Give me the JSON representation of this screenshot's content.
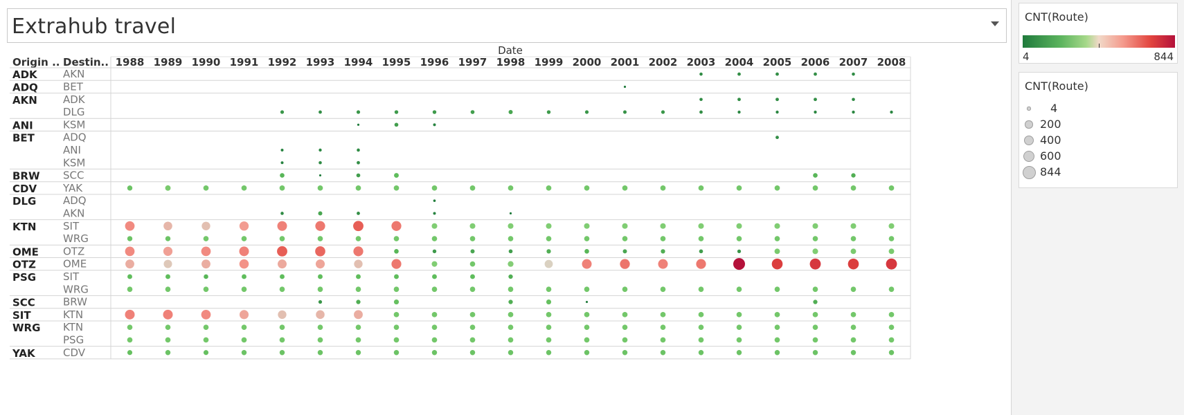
{
  "title": "Extrahub travel",
  "header": {
    "col_origin": "Origin ..",
    "col_dest": "Destin..",
    "date_label": "Date"
  },
  "years": [
    "1988",
    "1989",
    "1990",
    "1991",
    "1992",
    "1993",
    "1994",
    "1995",
    "1996",
    "1997",
    "1998",
    "1999",
    "2000",
    "2001",
    "2002",
    "2003",
    "2004",
    "2005",
    "2006",
    "2007",
    "2008"
  ],
  "colors": {
    "min": "#1f7a3c",
    "mid_green": "#7fcd72",
    "mid": "#d9d2c2",
    "mid_red": "#f4978c",
    "max": "#b4113a",
    "grid": "#d4d4d4"
  },
  "color_legend": {
    "title": "CNT(Route)",
    "min": "4",
    "max": "844"
  },
  "size_legend": {
    "title": "CNT(Route)",
    "items": [
      {
        "label": "4",
        "value": 4
      },
      {
        "label": "200",
        "value": 200
      },
      {
        "label": "400",
        "value": 400
      },
      {
        "label": "600",
        "value": 600
      },
      {
        "label": "844",
        "value": 844
      }
    ]
  },
  "chart_data": {
    "type": "scatter",
    "title": "Extrahub travel",
    "xlabel": "Date",
    "measure": "CNT(Route)",
    "value_range": [
      4,
      844
    ],
    "columns": [
      "1988",
      "1989",
      "1990",
      "1991",
      "1992",
      "1993",
      "1994",
      "1995",
      "1996",
      "1997",
      "1998",
      "1999",
      "2000",
      "2001",
      "2002",
      "2003",
      "2004",
      "2005",
      "2006",
      "2007",
      "2008"
    ],
    "rows": [
      {
        "origin": "ADK",
        "dest": "AKN",
        "values": [
          null,
          null,
          null,
          null,
          null,
          null,
          null,
          null,
          null,
          null,
          null,
          null,
          null,
          null,
          null,
          25,
          30,
          30,
          30,
          25,
          null
        ]
      },
      {
        "origin": "ADQ",
        "dest": "BET",
        "values": [
          null,
          null,
          null,
          null,
          null,
          null,
          null,
          null,
          null,
          null,
          null,
          null,
          null,
          5,
          null,
          null,
          null,
          null,
          null,
          null,
          null
        ]
      },
      {
        "origin": "AKN",
        "dest": "ADK",
        "values": [
          null,
          null,
          null,
          null,
          null,
          null,
          null,
          null,
          null,
          null,
          null,
          null,
          null,
          null,
          null,
          25,
          30,
          30,
          30,
          25,
          null
        ]
      },
      {
        "origin": "",
        "dest": "DLG",
        "values": [
          null,
          null,
          null,
          null,
          40,
          30,
          40,
          45,
          45,
          50,
          60,
          45,
          40,
          35,
          40,
          30,
          20,
          20,
          20,
          20,
          20
        ]
      },
      {
        "origin": "ANI",
        "dest": "KSM",
        "values": [
          null,
          null,
          null,
          null,
          null,
          null,
          5,
          50,
          15,
          null,
          null,
          null,
          null,
          null,
          null,
          null,
          null,
          null,
          null,
          null,
          null
        ]
      },
      {
        "origin": "BET",
        "dest": "ADQ",
        "values": [
          null,
          null,
          null,
          null,
          null,
          null,
          null,
          null,
          null,
          null,
          null,
          null,
          null,
          null,
          null,
          null,
          null,
          30,
          null,
          null,
          null
        ]
      },
      {
        "origin": "",
        "dest": "ANI",
        "values": [
          null,
          null,
          null,
          null,
          15,
          20,
          25,
          null,
          null,
          null,
          null,
          null,
          null,
          null,
          null,
          null,
          null,
          null,
          null,
          null,
          null
        ]
      },
      {
        "origin": "",
        "dest": "KSM",
        "values": [
          null,
          null,
          null,
          null,
          15,
          25,
          30,
          null,
          null,
          null,
          null,
          null,
          null,
          null,
          null,
          null,
          null,
          null,
          null,
          null,
          null
        ]
      },
      {
        "origin": "BRW",
        "dest": "SCC",
        "values": [
          null,
          null,
          null,
          null,
          80,
          5,
          50,
          90,
          null,
          null,
          null,
          null,
          null,
          null,
          null,
          null,
          null,
          null,
          80,
          70,
          null
        ]
      },
      {
        "origin": "CDV",
        "dest": "YAK",
        "values": [
          110,
          130,
          120,
          120,
          120,
          120,
          120,
          120,
          120,
          120,
          120,
          120,
          120,
          120,
          120,
          120,
          120,
          120,
          120,
          120,
          120
        ]
      },
      {
        "origin": "DLG",
        "dest": "ADQ",
        "values": [
          null,
          null,
          null,
          null,
          null,
          null,
          null,
          null,
          10,
          null,
          null,
          null,
          null,
          null,
          null,
          null,
          null,
          null,
          null,
          null,
          null
        ]
      },
      {
        "origin": "",
        "dest": "AKN",
        "values": [
          null,
          null,
          null,
          null,
          25,
          60,
          30,
          null,
          15,
          null,
          5,
          null,
          null,
          null,
          null,
          null,
          null,
          null,
          null,
          null,
          null
        ]
      },
      {
        "origin": "KTN",
        "dest": "SIT",
        "values": [
          520,
          420,
          400,
          480,
          540,
          560,
          620,
          560,
          140,
          140,
          140,
          140,
          140,
          140,
          140,
          140,
          140,
          140,
          140,
          140,
          140
        ]
      },
      {
        "origin": "",
        "dest": "WRG",
        "values": [
          110,
          110,
          120,
          120,
          120,
          120,
          120,
          120,
          120,
          120,
          120,
          120,
          120,
          120,
          120,
          120,
          120,
          120,
          120,
          120,
          120
        ]
      },
      {
        "origin": "OME",
        "dest": "OTZ",
        "values": [
          520,
          470,
          520,
          540,
          620,
          600,
          560,
          80,
          45,
          60,
          50,
          70,
          80,
          60,
          70,
          50,
          40,
          130,
          140,
          130,
          130
        ]
      },
      {
        "origin": "OTZ",
        "dest": "OME",
        "values": [
          440,
          380,
          440,
          500,
          450,
          460,
          400,
          560,
          140,
          120,
          150,
          360,
          540,
          570,
          540,
          560,
          844,
          700,
          720,
          700,
          720
        ]
      },
      {
        "origin": "PSG",
        "dest": "SIT",
        "values": [
          90,
          90,
          80,
          90,
          90,
          90,
          90,
          90,
          90,
          90,
          70,
          null,
          null,
          null,
          null,
          null,
          null,
          null,
          null,
          null,
          null
        ]
      },
      {
        "origin": "",
        "dest": "WRG",
        "values": [
          120,
          120,
          120,
          120,
          120,
          120,
          120,
          120,
          120,
          120,
          120,
          120,
          120,
          120,
          120,
          120,
          120,
          120,
          120,
          120,
          120
        ]
      },
      {
        "origin": "SCC",
        "dest": "BRW",
        "values": [
          null,
          null,
          null,
          null,
          null,
          40,
          70,
          100,
          null,
          null,
          70,
          100,
          5,
          null,
          null,
          null,
          null,
          null,
          70,
          null,
          null
        ]
      },
      {
        "origin": "SIT",
        "dest": "KTN",
        "values": [
          540,
          540,
          520,
          460,
          400,
          420,
          440,
          120,
          120,
          120,
          120,
          120,
          120,
          120,
          120,
          120,
          120,
          120,
          120,
          120,
          120
        ]
      },
      {
        "origin": "WRG",
        "dest": "KTN",
        "values": [
          120,
          120,
          120,
          120,
          120,
          120,
          120,
          120,
          120,
          120,
          120,
          120,
          120,
          120,
          120,
          120,
          120,
          120,
          120,
          120,
          120
        ]
      },
      {
        "origin": "",
        "dest": "PSG",
        "values": [
          120,
          120,
          120,
          120,
          120,
          120,
          120,
          120,
          120,
          120,
          120,
          120,
          120,
          120,
          120,
          120,
          120,
          120,
          120,
          120,
          120
        ]
      },
      {
        "origin": "YAK",
        "dest": "CDV",
        "values": [
          100,
          110,
          100,
          110,
          110,
          110,
          110,
          110,
          110,
          110,
          110,
          110,
          110,
          110,
          110,
          110,
          110,
          110,
          110,
          110,
          110
        ]
      }
    ]
  }
}
